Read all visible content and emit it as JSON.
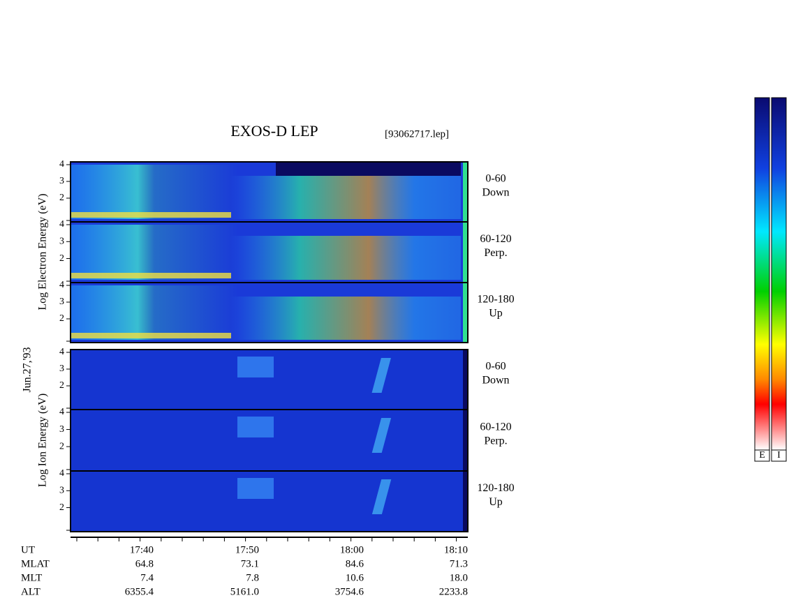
{
  "header": {
    "title": "EXOS-D LEP",
    "file": "[93062717.lep]"
  },
  "date": "Jun.27,'93",
  "energy_ticks": [
    "4",
    "3",
    "2"
  ],
  "electron": {
    "axis_label": "Log Electron Energy (eV)",
    "panels": [
      {
        "angle": "0-60",
        "direction": "Down"
      },
      {
        "angle": "60-120",
        "direction": "Perp."
      },
      {
        "angle": "120-180",
        "direction": "Up"
      }
    ]
  },
  "ion": {
    "axis_label": "Log Ion Energy (eV)",
    "panels": [
      {
        "angle": "0-60",
        "direction": "Down"
      },
      {
        "angle": "60-120",
        "direction": "Perp."
      },
      {
        "angle": "120-180",
        "direction": "Up"
      }
    ]
  },
  "orbit": {
    "rows": [
      {
        "label": "UT",
        "values": [
          "17:40",
          "17:50",
          "18:00",
          "18:10"
        ]
      },
      {
        "label": "MLAT",
        "values": [
          "64.8",
          "73.1",
          "84.6",
          "71.3"
        ]
      },
      {
        "label": "MLT",
        "values": [
          "7.4",
          "7.8",
          "10.6",
          "18.0"
        ]
      },
      {
        "label": "ALT",
        "values": [
          "6355.4",
          "5161.0",
          "3754.6",
          "2233.8"
        ]
      }
    ]
  },
  "colorbars": [
    "E",
    "I"
  ]
}
